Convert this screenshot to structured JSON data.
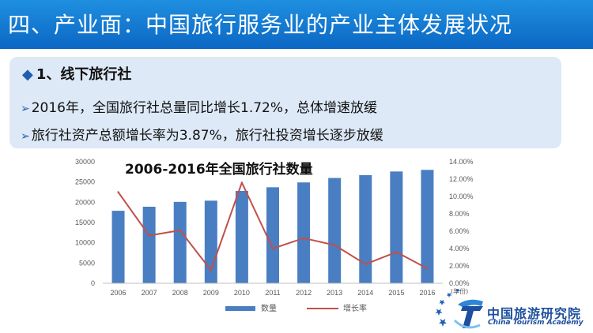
{
  "slide": {
    "title": "四、产业面：中国旅行服务业的产业主体发展状况",
    "section_heading": "1、线下旅行社",
    "bullets": [
      "2016年，全国旅行社总量同比增长1.72%，总体增速放缓",
      "旅行社资产总额增长率为3.87%，旅行社投资增长逐步放缓"
    ]
  },
  "logo": {
    "name_cn": "中国旅游研究院",
    "name_en": "China Tourism Academy"
  },
  "colors": {
    "title_bar": "#1478d4",
    "bar": "#4a7ec2",
    "line": "#c0504d",
    "box": "#dde9f7"
  },
  "chart_data": {
    "type": "bar",
    "title": "2006-2016年全国旅行社数量",
    "categories": [
      "2006",
      "2007",
      "2008",
      "2009",
      "2010",
      "2011",
      "2012",
      "2013",
      "2014",
      "2015",
      "2016"
    ],
    "xlabel": "(年份)",
    "series": [
      {
        "name": "数量",
        "type": "bar",
        "axis": "left",
        "values": [
          17900,
          18900,
          20100,
          20400,
          22800,
          23700,
          24900,
          26000,
          26700,
          27600,
          28000
        ]
      },
      {
        "name": "增长率",
        "type": "line",
        "axis": "right",
        "values": [
          10.5,
          5.5,
          6.1,
          1.5,
          11.6,
          4.0,
          5.2,
          4.4,
          2.2,
          3.6,
          1.7
        ]
      }
    ],
    "left_axis": {
      "ylim": [
        0,
        30000
      ],
      "ticks": [
        "0",
        "5000",
        "10000",
        "15000",
        "20000",
        "25000",
        "30000"
      ]
    },
    "right_axis": {
      "ylim": [
        0,
        14
      ],
      "ticks": [
        "0.00%",
        "2.00%",
        "4.00%",
        "6.00%",
        "8.00%",
        "10.00%",
        "12.00%",
        "14.00%"
      ]
    },
    "legend_position": "bottom",
    "grid": false
  }
}
